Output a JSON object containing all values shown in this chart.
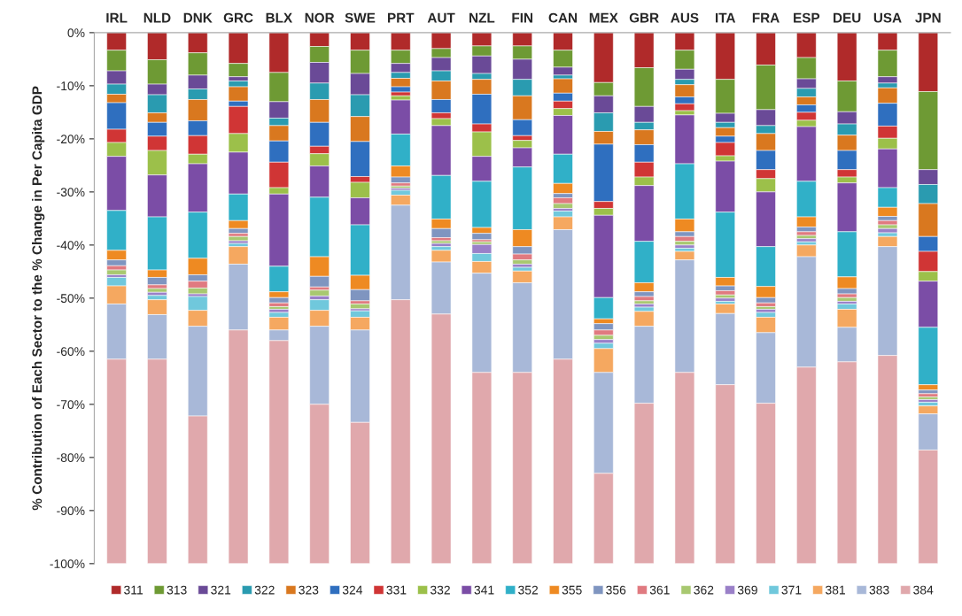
{
  "chart_data": {
    "type": "bar",
    "stacked": true,
    "ylabel": "% Contribution of Each Sector to the % Change in Per Capita GDP",
    "categories": [
      "IRL",
      "NLD",
      "DNK",
      "GRC",
      "BLX",
      "NOR",
      "SWE",
      "PRT",
      "AUT",
      "NZL",
      "FIN",
      "CAN",
      "MEX",
      "GBR",
      "AUS",
      "ITA",
      "FRA",
      "ESP",
      "DEU",
      "USA",
      "JPN"
    ],
    "ylim": [
      -100,
      0
    ],
    "yticks": [
      {
        "value": 0,
        "label": "0%"
      },
      {
        "value": -10,
        "label": "-10%"
      },
      {
        "value": -20,
        "label": "-20%"
      },
      {
        "value": -30,
        "label": "-30%"
      },
      {
        "value": -40,
        "label": "-40%"
      },
      {
        "value": -50,
        "label": "-50%"
      },
      {
        "value": -60,
        "label": "-60%"
      },
      {
        "value": -70,
        "label": "-70%"
      },
      {
        "value": -80,
        "label": "-80%"
      },
      {
        "value": -90,
        "label": "-90%"
      },
      {
        "value": -100,
        "label": "-100%"
      }
    ],
    "grid": false,
    "legend": "bottom",
    "series": [
      {
        "name": "311",
        "color": "#b02a2a",
        "values": [
          -3.3,
          -5.1,
          -3.8,
          -5.8,
          -7.5,
          -2.6,
          -3.3,
          -3.3,
          -3.0,
          -2.5,
          -2.5,
          -3.3,
          -9.4,
          -6.6,
          -3.3,
          -8.8,
          -6.1,
          -4.7,
          -9.1,
          -3.3,
          -11.1
        ]
      },
      {
        "name": "313",
        "color": "#6e9a34",
        "values": [
          -3.9,
          -4.6,
          -4.2,
          -2.5,
          -5.5,
          -3.0,
          -4.4,
          -2.5,
          -1.7,
          -1.9,
          -2.5,
          -3.2,
          -2.5,
          -7.3,
          -3.6,
          -6.4,
          -8.4,
          -4.0,
          -5.8,
          -5.0,
          -14.7
        ]
      },
      {
        "name": "321",
        "color": "#6a4a97",
        "values": [
          -2.5,
          -2.0,
          -2.6,
          -0.8,
          -3.1,
          -3.9,
          -4.0,
          -1.7,
          -2.5,
          -3.3,
          -3.8,
          -1.5,
          -3.2,
          -3.0,
          -1.9,
          -1.7,
          -3.0,
          -1.8,
          -2.3,
          -1.2,
          -2.8
        ]
      },
      {
        "name": "322",
        "color": "#2a9bb0",
        "values": [
          -1.9,
          -3.4,
          -2.0,
          -1.1,
          -1.4,
          -3.1,
          -4.1,
          -1.1,
          -1.9,
          -1.1,
          -3.1,
          -0.7,
          -3.5,
          -1.4,
          -1.0,
          -1.0,
          -1.5,
          -1.6,
          -2.1,
          -0.9,
          -3.6
        ]
      },
      {
        "name": "323",
        "color": "#d9781f",
        "values": [
          -1.6,
          -1.8,
          -4.0,
          -2.7,
          -2.9,
          -4.3,
          -4.7,
          -1.6,
          -3.5,
          -2.8,
          -4.5,
          -2.7,
          -2.4,
          -2.8,
          -2.3,
          -1.6,
          -3.2,
          -1.5,
          -2.9,
          -2.9,
          -6.2
        ]
      },
      {
        "name": "324",
        "color": "#2f6fbf",
        "values": [
          -5.0,
          -2.6,
          -2.8,
          -1.0,
          -4.0,
          -4.5,
          -6.6,
          -1.0,
          -2.5,
          -5.6,
          -3.0,
          -1.5,
          -10.8,
          -3.3,
          -1.3,
          -1.2,
          -3.6,
          -1.4,
          -3.6,
          -4.3,
          -2.8
        ]
      },
      {
        "name": "331",
        "color": "#d03535",
        "values": [
          -2.5,
          -2.7,
          -3.5,
          -5.1,
          -4.8,
          -1.4,
          -1.1,
          -0.7,
          -1.1,
          -1.5,
          -0.9,
          -1.4,
          -1.3,
          -2.8,
          -1.3,
          -2.5,
          -1.7,
          -1.5,
          -1.4,
          -2.3,
          -3.8
        ]
      },
      {
        "name": "332",
        "color": "#9cc04a",
        "values": [
          -2.6,
          -4.6,
          -1.8,
          -3.5,
          -1.2,
          -2.3,
          -2.9,
          -0.8,
          -1.3,
          -4.6,
          -1.4,
          -1.3,
          -1.3,
          -1.6,
          -0.8,
          -1.0,
          -2.5,
          -1.2,
          -1.1,
          -2.0,
          -1.8
        ]
      },
      {
        "name": "341",
        "color": "#7b4da6",
        "values": [
          -10.2,
          -7.9,
          -9.1,
          -7.9,
          -13.6,
          -5.9,
          -5.1,
          -6.4,
          -9.4,
          -4.7,
          -3.6,
          -7.3,
          -15.5,
          -10.5,
          -9.2,
          -9.6,
          -10.3,
          -10.3,
          -9.2,
          -7.3,
          -8.7
        ]
      },
      {
        "name": "352",
        "color": "#30b0c8",
        "values": [
          -7.5,
          -10.0,
          -8.7,
          -5.0,
          -4.8,
          -11.2,
          -9.5,
          -6.0,
          -8.2,
          -8.7,
          -11.8,
          -5.5,
          -4.0,
          -7.8,
          -10.4,
          -12.3,
          -7.5,
          -6.7,
          -8.5,
          -3.7,
          -10.8
        ]
      },
      {
        "name": "355",
        "color": "#ee8a22",
        "values": [
          -1.8,
          -1.4,
          -3.1,
          -1.5,
          -1.1,
          -3.7,
          -2.7,
          -2.1,
          -1.8,
          -1.1,
          -3.2,
          -1.9,
          -0.9,
          -1.7,
          -2.4,
          -1.6,
          -2.1,
          -1.9,
          -2.2,
          -1.7,
          -1.0
        ]
      },
      {
        "name": "356",
        "color": "#7f95c0",
        "values": [
          -1.1,
          -1.4,
          -1.2,
          -0.9,
          -1.0,
          -2.0,
          -2.1,
          -1.1,
          -1.7,
          -1.2,
          -1.4,
          -0.8,
          -1.2,
          -0.9,
          -0.9,
          -0.9,
          -1.0,
          -0.9,
          -1.0,
          -0.8,
          -0.7
        ]
      },
      {
        "name": "361",
        "color": "#e07a80",
        "values": [
          -0.8,
          -0.7,
          -1.3,
          -0.6,
          -0.7,
          -0.6,
          -0.6,
          -0.6,
          -0.6,
          -0.4,
          -1.1,
          -1.1,
          -1.0,
          -0.8,
          -0.9,
          -0.8,
          -0.7,
          -0.7,
          -0.7,
          -0.8,
          -0.6
        ]
      },
      {
        "name": "362",
        "color": "#a8c870",
        "values": [
          -0.9,
          -0.7,
          -1.1,
          -0.8,
          -0.5,
          -1.1,
          -0.9,
          -0.4,
          -0.5,
          -0.5,
          -0.8,
          -0.9,
          -0.8,
          -0.6,
          -0.7,
          -0.6,
          -0.5,
          -0.6,
          -0.7,
          -0.7,
          -0.5
        ]
      },
      {
        "name": "369",
        "color": "#9a80c8",
        "values": [
          -0.5,
          -0.6,
          -0.5,
          -0.5,
          -0.6,
          -0.7,
          -0.4,
          -0.4,
          -0.6,
          -1.7,
          -0.6,
          -0.5,
          -0.7,
          -0.6,
          -0.6,
          -0.6,
          -0.6,
          -0.6,
          -0.5,
          -0.8,
          -0.5
        ]
      },
      {
        "name": "371",
        "color": "#70c8dc",
        "values": [
          -1.6,
          -0.8,
          -2.6,
          -0.6,
          -0.9,
          -2.0,
          -1.2,
          -0.9,
          -0.7,
          -1.5,
          -0.7,
          -1.1,
          -1.0,
          -0.8,
          -0.6,
          -0.5,
          -0.9,
          -0.6,
          -1.0,
          -0.7,
          -0.7
        ]
      },
      {
        "name": "381",
        "color": "#f5a860",
        "values": [
          -3.4,
          -2.8,
          -3.0,
          -3.3,
          -2.4,
          -3.0,
          -2.4,
          -1.9,
          -2.2,
          -2.2,
          -2.2,
          -2.4,
          -4.5,
          -2.8,
          -1.6,
          -1.8,
          -2.9,
          -2.2,
          -3.4,
          -1.9,
          -1.5
        ]
      },
      {
        "name": "383",
        "color": "#a8b8d8",
        "values": [
          -10.4,
          -8.4,
          -16.9,
          -12.4,
          -2.0,
          -14.7,
          -17.4,
          -17.8,
          -9.8,
          -18.7,
          -16.9,
          -24.4,
          -19.0,
          -14.5,
          -21.2,
          -13.4,
          -13.3,
          -20.8,
          -6.5,
          -20.5,
          -6.8
        ]
      },
      {
        "name": "384",
        "color": "#e0a8ac",
        "values": [
          -38.5,
          -38.5,
          -27.8,
          -44.0,
          -42.0,
          -30.0,
          -26.6,
          -49.7,
          -47.0,
          -36.0,
          -36.0,
          -38.5,
          -17.0,
          -30.2,
          -36.0,
          -33.7,
          -30.2,
          -37.0,
          -38.0,
          -39.2,
          -21.4
        ]
      }
    ]
  }
}
